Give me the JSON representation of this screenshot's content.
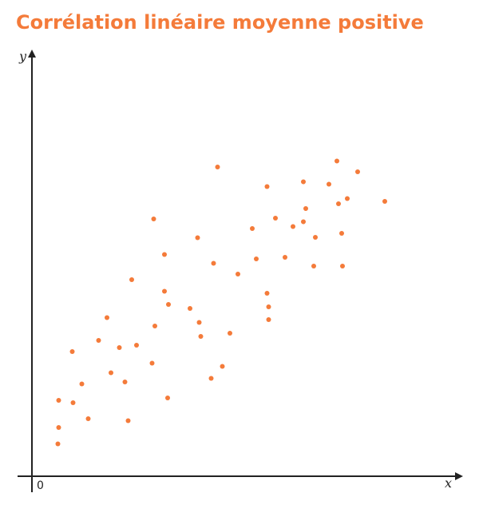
{
  "chart_data": {
    "type": "scatter",
    "title": "Corrélation linéaire moyenne positive",
    "xlabel": "x",
    "ylabel": "y",
    "origin_label": "0",
    "grid": false,
    "legend": "none",
    "xlim": [
      0,
      100
    ],
    "ylim": [
      0,
      100
    ],
    "point_color": "#f47b3a",
    "axis_color": "#222222",
    "points": [
      {
        "x": 6.5,
        "y": 8.1
      },
      {
        "x": 6.7,
        "y": 12.2
      },
      {
        "x": 6.7,
        "y": 19.0
      },
      {
        "x": 10.3,
        "y": 18.4
      },
      {
        "x": 10.1,
        "y": 31.2
      },
      {
        "x": 12.5,
        "y": 23.1
      },
      {
        "x": 14.1,
        "y": 14.4
      },
      {
        "x": 16.7,
        "y": 34.0
      },
      {
        "x": 18.8,
        "y": 39.7
      },
      {
        "x": 19.8,
        "y": 25.9
      },
      {
        "x": 21.9,
        "y": 32.2
      },
      {
        "x": 23.3,
        "y": 23.6
      },
      {
        "x": 24.1,
        "y": 13.9
      },
      {
        "x": 25.0,
        "y": 49.2
      },
      {
        "x": 26.2,
        "y": 32.8
      },
      {
        "x": 30.1,
        "y": 28.3
      },
      {
        "x": 30.5,
        "y": 64.4
      },
      {
        "x": 30.8,
        "y": 37.6
      },
      {
        "x": 33.2,
        "y": 46.3
      },
      {
        "x": 33.2,
        "y": 55.5
      },
      {
        "x": 34.2,
        "y": 43.0
      },
      {
        "x": 34.0,
        "y": 19.6
      },
      {
        "x": 39.6,
        "y": 42.0
      },
      {
        "x": 41.5,
        "y": 59.7
      },
      {
        "x": 41.9,
        "y": 38.5
      },
      {
        "x": 42.3,
        "y": 35.0
      },
      {
        "x": 44.9,
        "y": 24.5
      },
      {
        "x": 45.5,
        "y": 53.3
      },
      {
        "x": 46.5,
        "y": 77.4
      },
      {
        "x": 47.7,
        "y": 27.5
      },
      {
        "x": 49.6,
        "y": 35.8
      },
      {
        "x": 51.6,
        "y": 50.6
      },
      {
        "x": 55.2,
        "y": 62.0
      },
      {
        "x": 56.2,
        "y": 54.4
      },
      {
        "x": 58.9,
        "y": 72.5
      },
      {
        "x": 58.9,
        "y": 45.8
      },
      {
        "x": 59.3,
        "y": 42.4
      },
      {
        "x": 59.3,
        "y": 39.2
      },
      {
        "x": 61.0,
        "y": 64.6
      },
      {
        "x": 63.4,
        "y": 54.8
      },
      {
        "x": 65.4,
        "y": 62.5
      },
      {
        "x": 68.0,
        "y": 63.7
      },
      {
        "x": 68.0,
        "y": 73.7
      },
      {
        "x": 68.6,
        "y": 67.0
      },
      {
        "x": 70.6,
        "y": 52.6
      },
      {
        "x": 71.0,
        "y": 59.8
      },
      {
        "x": 74.4,
        "y": 73.1
      },
      {
        "x": 76.4,
        "y": 78.9
      },
      {
        "x": 76.8,
        "y": 68.2
      },
      {
        "x": 77.6,
        "y": 60.8
      },
      {
        "x": 77.8,
        "y": 52.6
      },
      {
        "x": 79.0,
        "y": 69.5
      },
      {
        "x": 81.6,
        "y": 76.2
      },
      {
        "x": 88.4,
        "y": 68.8
      }
    ]
  }
}
